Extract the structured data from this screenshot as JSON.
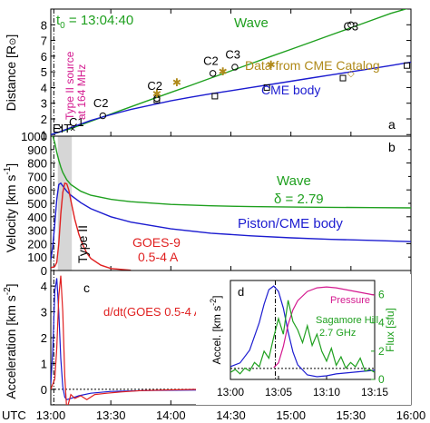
{
  "colors": {
    "green": "#1fa01f",
    "blue": "#1c1cd0",
    "red": "#e02020",
    "gold": "#b08a1a",
    "magenta": "#d4198f",
    "black": "#000000",
    "shade": "#d6d6d6"
  },
  "chart_data": [
    {
      "panel": "a",
      "type": "line",
      "ylabel": "Distance",
      "ylabel_unit": "[R",
      "ylabel_unit_symbol": "⊙",
      "ylabel_unit_close": "]",
      "xlim": [
        0,
        180
      ],
      "ylim": [
        0.9,
        9.0
      ],
      "yticks": [
        1,
        2,
        3,
        4,
        5,
        6,
        7,
        8
      ],
      "t0_label": "t",
      "t0_sub": "0",
      "t0_value": " = 13:04:40",
      "type2_label_line1": "Type II source",
      "type2_label_line2": "at 164 MHz",
      "panel_label": "a",
      "series": [
        {
          "name": "Wave",
          "color": "green",
          "x": [
            0,
            10,
            20,
            30,
            40,
            50,
            60,
            70,
            80,
            90,
            100,
            110,
            120,
            130,
            140,
            150,
            160,
            170,
            180
          ],
          "y": [
            1.0,
            1.38,
            1.85,
            2.31,
            2.77,
            3.23,
            3.69,
            4.14,
            4.6,
            5.06,
            5.52,
            5.98,
            6.43,
            6.89,
            7.35,
            7.81,
            8.27,
            8.73,
            9.1
          ]
        },
        {
          "name": "CME body",
          "color": "blue",
          "x": [
            0,
            5,
            10,
            20,
            30,
            40,
            50,
            60,
            70,
            80,
            90,
            100,
            110,
            120,
            130,
            140,
            150,
            160,
            170,
            180
          ],
          "y": [
            1.0,
            1.2,
            1.45,
            1.9,
            2.27,
            2.6,
            2.88,
            3.15,
            3.38,
            3.6,
            3.8,
            4.0,
            4.2,
            4.4,
            4.6,
            4.8,
            5.0,
            5.2,
            5.4,
            5.62
          ]
        }
      ],
      "markers": {
        "wave_circles": {
          "x": [
            26,
            53,
            81,
            92,
            150
          ],
          "y": [
            2.2,
            3.3,
            4.9,
            5.3,
            8.0
          ]
        },
        "wave_circle_labels": [
          {
            "text": "C2",
            "x": 25,
            "y": 2.75
          },
          {
            "text": "C2",
            "x": 52,
            "y": 3.85
          },
          {
            "text": "C2",
            "x": 80,
            "y": 5.45
          },
          {
            "text": "C3",
            "x": 91,
            "y": 5.85
          },
          {
            "text": "C3",
            "x": 150,
            "y": 7.65
          }
        ],
        "cme_squares": {
          "x": [
            53,
            82,
            108,
            146,
            178
          ],
          "y": [
            3.2,
            3.45,
            4.0,
            4.6,
            5.4
          ]
        },
        "catalog_stars": {
          "x": [
            53,
            63,
            86,
            110
          ],
          "y": [
            3.6,
            4.3,
            5.0,
            5.45
          ]
        },
        "catalog_diamonds": {
          "x": [
            150
          ],
          "y": [
            4.95
          ]
        },
        "eit_cross": {
          "x": [
            5
          ],
          "y": [
            1.48
          ]
        },
        "c1_cross": {
          "x": [
            11
          ],
          "y": [
            1.4
          ]
        }
      },
      "annotations": {
        "wave": "Wave",
        "catalog": "Data from CME Catalog",
        "cme_body": "CME body",
        "eit": "EIT",
        "c1": "C1"
      }
    },
    {
      "panel": "b",
      "type": "line",
      "ylabel": "Velocity [km s",
      "ylabel_sup": "-1",
      "ylabel_close": "]",
      "xlim": [
        0,
        180
      ],
      "ylim": [
        0,
        1000
      ],
      "yticks": [
        0,
        100,
        200,
        300,
        400,
        500,
        600,
        700,
        800,
        900,
        1000
      ],
      "shaded_interval_label": "Type II",
      "shaded_interval": [
        3.5,
        10.5
      ],
      "panel_label": "b",
      "series": [
        {
          "name": "Wave",
          "color": "green",
          "x": [
            1,
            2,
            3,
            4,
            5,
            6,
            8,
            10,
            15,
            20,
            30,
            40,
            60,
            80,
            100,
            120,
            140,
            160,
            180
          ],
          "y": [
            1000,
            950,
            880,
            820,
            770,
            730,
            675,
            640,
            590,
            560,
            530,
            512,
            492,
            482,
            476,
            472,
            470,
            468,
            466
          ]
        },
        {
          "name": "Piston/CME body",
          "color": "blue",
          "x": [
            0,
            1,
            2,
            3,
            4,
            5,
            6,
            8,
            10,
            15,
            20,
            30,
            40,
            60,
            80,
            100,
            120,
            140,
            160,
            180
          ],
          "y": [
            80,
            180,
            350,
            530,
            640,
            650,
            630,
            590,
            560,
            505,
            460,
            400,
            360,
            310,
            278,
            258,
            243,
            232,
            224,
            215
          ]
        },
        {
          "name": "GOES-9 0.5-4 A",
          "color": "red",
          "x": [
            0,
            2,
            3,
            4,
            5,
            6,
            7,
            8,
            9,
            10,
            12,
            14,
            16,
            18,
            20,
            25,
            30,
            40
          ],
          "y": [
            20,
            30,
            60,
            200,
            420,
            580,
            650,
            645,
            600,
            520,
            380,
            270,
            190,
            130,
            90,
            40,
            15,
            2
          ]
        }
      ],
      "annotations": {
        "wave": "Wave",
        "delta": "δ = 2.79",
        "piston": "Piston/CME body",
        "goes_line1": "GOES-9",
        "goes_line2": "0.5-4 A"
      }
    },
    {
      "panel": "c",
      "type": "line",
      "ylabel": "Acceleration [km s",
      "ylabel_sup": "-2",
      "ylabel_close": "]",
      "xlim": [
        0,
        180
      ],
      "ylim": [
        -0.6,
        4.6
      ],
      "yticks": [
        0,
        1,
        2,
        3,
        4
      ],
      "xticks_labels": [
        "UTC",
        "13:00",
        "13:30",
        "14:00",
        "14:30",
        "15:00",
        "15:30",
        "16:00"
      ],
      "xticks": [
        0,
        30,
        60,
        90,
        120,
        150,
        180
      ],
      "panel_label": "c",
      "dadt_label": "d/dt(GOES 0.5-4 A)",
      "series": [
        {
          "name": "CME acceleration",
          "color": "blue",
          "x": [
            0,
            1,
            2,
            3,
            4,
            5,
            6,
            7,
            8,
            10,
            14,
            20,
            30,
            50,
            80,
            120,
            180
          ],
          "y": [
            0.2,
            1.5,
            3.8,
            4.3,
            3.0,
            1.2,
            0.1,
            -0.3,
            -0.4,
            -0.35,
            -0.25,
            -0.15,
            -0.08,
            -0.04,
            -0.02,
            -0.01,
            0
          ]
        },
        {
          "name": "d/dt(GOES 0.5-4 A)",
          "color": "red",
          "x": [
            0,
            2,
            3,
            4,
            5,
            6,
            7,
            8,
            9,
            10,
            12,
            15,
            18,
            22,
            28,
            35,
            45,
            60,
            75
          ],
          "y": [
            0,
            0.4,
            1.6,
            3.6,
            4.4,
            3.0,
            0.5,
            -0.8,
            -0.5,
            -0.2,
            -0.35,
            -0.25,
            -0.4,
            -0.2,
            -0.15,
            -0.1,
            -0.05,
            -0.02,
            0
          ]
        }
      ]
    },
    {
      "panel": "d",
      "type": "line",
      "ylabel_left": "Accel. [km s",
      "ylabel_left_sup": "-2",
      "ylabel_left_close": "]",
      "ylabel_right": "Flux [sfu]",
      "xlim": [
        0,
        15
      ],
      "xticks_labels": [
        "13:00",
        "13:05",
        "13:10",
        "13:15"
      ],
      "xticks": [
        0,
        5,
        10,
        15
      ],
      "ylim_left": [
        -0.6,
        4.8
      ],
      "ylim_right": [
        0,
        7
      ],
      "yticks_right": [
        0,
        2,
        4,
        6
      ],
      "panel_label": "d",
      "pressure_label": "Pressure",
      "radio_label_line1": "Sagamore Hill",
      "radio_label_line2": "2.7 GHz",
      "series": [
        {
          "name": "CME acceleration",
          "color": "blue",
          "x": [
            0,
            1,
            2,
            3,
            3.5,
            4,
            4.5,
            5,
            5.5,
            6,
            6.5,
            7,
            8,
            9,
            10,
            11,
            12,
            13,
            14,
            15
          ],
          "y": [
            0.1,
            0.3,
            1.0,
            2.5,
            3.5,
            4.3,
            4.5,
            4.2,
            3.3,
            2.0,
            0.9,
            0.2,
            -0.35,
            -0.45,
            -0.4,
            -0.3,
            -0.25,
            -0.2,
            -0.15,
            -0.1
          ]
        },
        {
          "name": "Pressure",
          "color": "magenta",
          "x": [
            4.5,
            5,
            5.5,
            6,
            6.5,
            7,
            8,
            9,
            10,
            11,
            12,
            13,
            14,
            15
          ],
          "y": [
            0.05,
            0.3,
            1.2,
            2.4,
            3.2,
            3.7,
            4.2,
            4.4,
            4.45,
            4.4,
            4.3,
            4.2,
            4.1,
            4.0
          ]
        },
        {
          "name": "Sagamore Hill 2.7 GHz",
          "color": "green",
          "axis": "right",
          "x": [
            0,
            0.5,
            1,
            1.5,
            2,
            2.5,
            3,
            3.5,
            4,
            4.5,
            5,
            5.5,
            6,
            6.5,
            7,
            7.5,
            8,
            8.5,
            9,
            9.5,
            10,
            10.5,
            11,
            11.5,
            12,
            12.5,
            13,
            13.5,
            14,
            14.5,
            15
          ],
          "y": [
            0.5,
            0.7,
            0.4,
            0.8,
            0.6,
            1.2,
            0.9,
            2.0,
            1.5,
            3.0,
            4.3,
            3.2,
            5.6,
            4.1,
            3.5,
            2.6,
            3.8,
            2.4,
            3.2,
            2.0,
            1.3,
            2.2,
            1.0,
            1.6,
            0.8,
            1.2,
            0.9,
            1.5,
            0.6,
            0.7,
            0.5
          ]
        }
      ]
    }
  ]
}
